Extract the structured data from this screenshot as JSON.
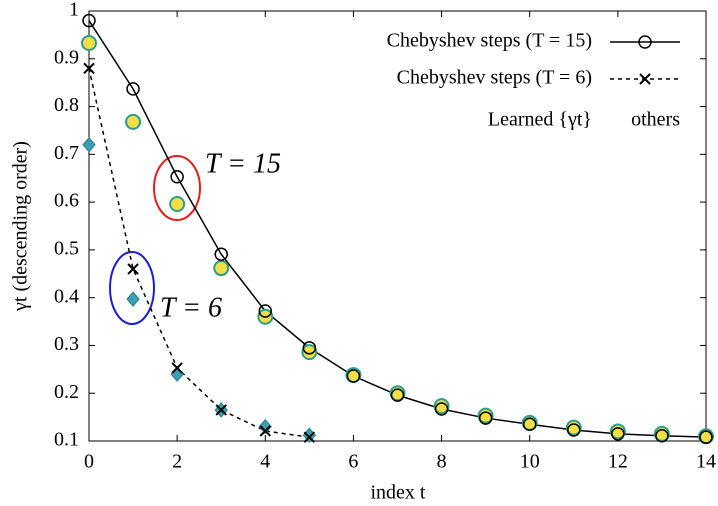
{
  "chart_data": {
    "type": "line",
    "x_label": "index t",
    "y_label": "γt (descending order)",
    "x": [
      0,
      1,
      2,
      3,
      4,
      5,
      6,
      7,
      8,
      9,
      10,
      11,
      12,
      13,
      14
    ],
    "xlim": [
      0,
      14
    ],
    "xticks": [
      0,
      2,
      4,
      6,
      8,
      10,
      12,
      14
    ],
    "ylim": [
      0.1,
      1
    ],
    "yticks": [
      0.1,
      0.2,
      0.3,
      0.4,
      0.5,
      0.6,
      0.7,
      0.8,
      0.9,
      1
    ],
    "annotations": [
      "T = 15",
      "T = 6"
    ],
    "legend_position": "upper right",
    "series": [
      {
        "name": "Chebyshev steps (T = 15)",
        "color": "#000000",
        "marker": "circle",
        "line": "solid",
        "values": [
          0.98,
          0.837,
          0.653,
          0.491,
          0.372,
          0.295,
          0.236,
          0.196,
          0.167,
          0.148,
          0.135,
          0.123,
          0.115,
          0.111,
          0.108
        ]
      },
      {
        "name": "Chebyshev steps (T = 6)",
        "color": "#000000",
        "marker": "cross",
        "line": "dashed",
        "values": [
          0.88,
          0.46,
          0.253,
          0.165,
          0.121,
          0.108,
          null,
          null,
          null,
          null,
          null,
          null,
          null,
          null,
          null
        ]
      },
      {
        "name": "Learned {γt}",
        "color": "#f2de45",
        "marker": "disc",
        "line": "none",
        "values": [
          0.933,
          0.768,
          0.596,
          0.462,
          0.36,
          0.286,
          0.238,
          0.2,
          0.173,
          0.153,
          0.138,
          0.128,
          0.12,
          0.115,
          0.11
        ]
      },
      {
        "name": "others",
        "color": "#3a9fb0",
        "marker": "diamond",
        "line": "none",
        "values": [
          0.72,
          0.397,
          0.24,
          0.165,
          0.13,
          0.112,
          null,
          null,
          null,
          null,
          null,
          null,
          null,
          null,
          null
        ]
      }
    ]
  }
}
